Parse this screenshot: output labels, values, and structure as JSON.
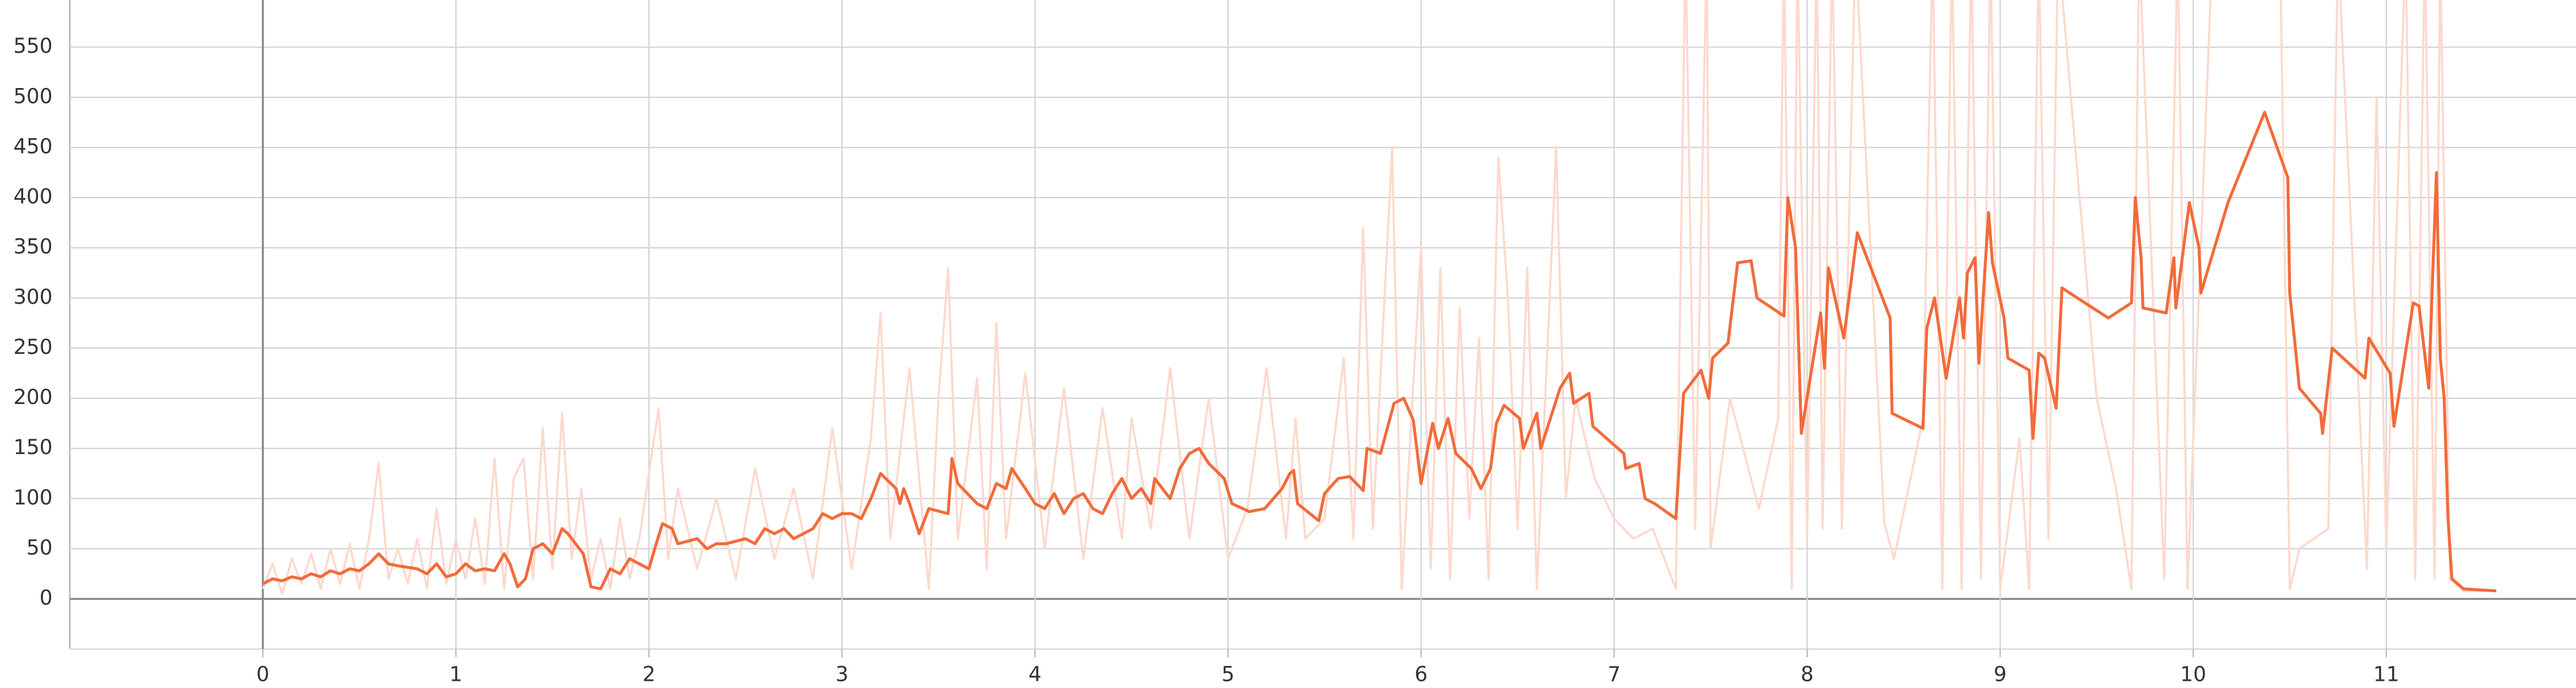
{
  "chart_data": {
    "type": "line",
    "xlim": [
      -1,
      12
    ],
    "ylim": [
      -50,
      597
    ],
    "xticks": [
      0,
      1,
      2,
      3,
      4,
      5,
      6,
      7,
      8,
      9,
      10,
      11
    ],
    "yticks": [
      0,
      50,
      100,
      150,
      200,
      250,
      300,
      350,
      400,
      450,
      500,
      550
    ],
    "grid": true,
    "series": [
      {
        "color": "#fcd9cd",
        "x": [
          0,
          0.05,
          0.1,
          0.15,
          0.2,
          0.25,
          0.3,
          0.35,
          0.4,
          0.45,
          0.5,
          0.55,
          0.6,
          0.65,
          0.7,
          0.75,
          0.8,
          0.85,
          0.9,
          0.95,
          1.0,
          1.05,
          1.1,
          1.15,
          1.2,
          1.25,
          1.3,
          1.35,
          1.4,
          1.45,
          1.5,
          1.55,
          1.6,
          1.65,
          1.7,
          1.75,
          1.8,
          1.85,
          1.9,
          1.95,
          2.05,
          2.1,
          2.15,
          2.25,
          2.35,
          2.45,
          2.55,
          2.65,
          2.75,
          2.85,
          2.95,
          3.05,
          3.15,
          3.2,
          3.25,
          3.35,
          3.45,
          3.5,
          3.55,
          3.6,
          3.7,
          3.75,
          3.8,
          3.85,
          3.95,
          4.05,
          4.15,
          4.25,
          4.35,
          4.45,
          4.5,
          4.6,
          4.7,
          4.8,
          4.9,
          5.0,
          5.1,
          5.2,
          5.3,
          5.35,
          5.4,
          5.5,
          5.6,
          5.65,
          5.7,
          5.75,
          5.85,
          5.9,
          6.0,
          6.05,
          6.1,
          6.15,
          6.2,
          6.25,
          6.3,
          6.35,
          6.4,
          6.45,
          6.5,
          6.55,
          6.6,
          6.7,
          6.75,
          6.8,
          6.9,
          7.0,
          7.1,
          7.2,
          7.32,
          7.37,
          7.42,
          7.48,
          7.5,
          7.6,
          7.75,
          7.85,
          7.88,
          7.92,
          7.95,
          8.0,
          8.05,
          8.08,
          8.13,
          8.18,
          8.25,
          8.4,
          8.45,
          8.6,
          8.65,
          8.7,
          8.75,
          8.8,
          8.85,
          8.9,
          8.95,
          9.0,
          9.1,
          9.15,
          9.2,
          9.25,
          9.3,
          9.5,
          9.6,
          9.68,
          9.72,
          9.85,
          9.92,
          9.97,
          10.1,
          10.45,
          10.5,
          10.55,
          10.7,
          10.75,
          10.9,
          10.95,
          11.0,
          11.1,
          11.15,
          11.2,
          11.25,
          11.28,
          11.33,
          11.4,
          11.57
        ],
        "values": [
          10,
          35,
          5,
          40,
          15,
          45,
          10,
          50,
          15,
          55,
          10,
          60,
          135,
          20,
          50,
          15,
          60,
          10,
          90,
          15,
          60,
          20,
          80,
          15,
          140,
          10,
          120,
          140,
          20,
          170,
          30,
          185,
          40,
          110,
          20,
          60,
          10,
          80,
          20,
          60,
          190,
          40,
          110,
          30,
          100,
          20,
          130,
          40,
          110,
          20,
          170,
          30,
          160,
          285,
          60,
          230,
          10,
          200,
          330,
          60,
          220,
          30,
          275,
          60,
          225,
          50,
          210,
          40,
          190,
          60,
          180,
          70,
          230,
          60,
          200,
          40,
          90,
          230,
          60,
          180,
          60,
          80,
          240,
          60,
          370,
          70,
          450,
          10,
          350,
          30,
          330,
          20,
          290,
          80,
          260,
          20,
          440,
          300,
          70,
          330,
          10,
          450,
          100,
          200,
          120,
          80,
          60,
          70,
          10,
          650,
          70,
          650,
          50,
          200,
          90,
          180,
          650,
          10,
          650,
          60,
          650,
          70,
          650,
          70,
          650,
          75,
          40,
          180,
          650,
          10,
          650,
          10,
          650,
          20,
          650,
          10,
          160,
          10,
          650,
          60,
          650,
          200,
          110,
          10,
          650,
          20,
          650,
          10,
          650,
          650,
          10,
          50,
          70,
          650,
          30,
          500,
          50,
          650,
          20,
          650,
          20,
          650,
          20,
          8,
          8
        ]
      },
      {
        "color": "#f26b3a",
        "x": [
          0,
          0.05,
          0.1,
          0.15,
          0.2,
          0.25,
          0.3,
          0.35,
          0.4,
          0.45,
          0.5,
          0.55,
          0.6,
          0.65,
          0.7,
          0.8,
          0.85,
          0.9,
          0.95,
          1.0,
          1.05,
          1.1,
          1.15,
          1.2,
          1.25,
          1.28,
          1.32,
          1.36,
          1.4,
          1.45,
          1.5,
          1.55,
          1.58,
          1.62,
          1.66,
          1.7,
          1.75,
          1.8,
          1.85,
          1.9,
          1.95,
          2.0,
          2.03,
          2.07,
          2.12,
          2.15,
          2.25,
          2.3,
          2.35,
          2.4,
          2.5,
          2.55,
          2.6,
          2.65,
          2.7,
          2.75,
          2.85,
          2.9,
          2.95,
          3.0,
          3.05,
          3.1,
          3.15,
          3.2,
          3.28,
          3.3,
          3.32,
          3.35,
          3.4,
          3.45,
          3.55,
          3.57,
          3.6,
          3.65,
          3.7,
          3.75,
          3.8,
          3.85,
          3.88,
          3.95,
          4.0,
          4.05,
          4.1,
          4.15,
          4.2,
          4.25,
          4.3,
          4.35,
          4.4,
          4.45,
          4.5,
          4.55,
          4.6,
          4.62,
          4.7,
          4.75,
          4.8,
          4.85,
          4.9,
          4.98,
          5.02,
          5.11,
          5.19,
          5.28,
          5.32,
          5.34,
          5.36,
          5.47,
          5.5,
          5.57,
          5.63,
          5.7,
          5.72,
          5.79,
          5.86,
          5.91,
          5.96,
          6.0,
          6.06,
          6.09,
          6.14,
          6.18,
          6.26,
          6.31,
          6.36,
          6.39,
          6.43,
          6.51,
          6.53,
          6.6,
          6.62,
          6.72,
          6.77,
          6.79,
          6.87,
          6.89,
          7.05,
          7.06,
          7.13,
          7.16,
          7.21,
          7.32,
          7.36,
          7.45,
          7.49,
          7.51,
          7.59,
          7.64,
          7.71,
          7.74,
          7.88,
          7.9,
          7.94,
          7.97,
          8.07,
          8.09,
          8.11,
          8.19,
          8.26,
          8.43,
          8.44,
          8.6,
          8.62,
          8.66,
          8.72,
          8.79,
          8.81,
          8.83,
          8.87,
          8.89,
          8.94,
          8.96,
          9.02,
          9.04,
          9.15,
          9.17,
          9.2,
          9.23,
          9.29,
          9.32,
          9.56,
          9.68,
          9.7,
          9.73,
          9.74,
          9.86,
          9.9,
          9.91,
          9.98,
          10.03,
          10.04,
          10.18,
          10.37,
          10.49,
          10.5,
          10.54,
          10.55,
          10.66,
          10.67,
          10.72,
          10.89,
          10.91,
          11.02,
          11.04,
          11.14,
          11.17,
          11.22,
          11.24,
          11.26,
          11.28,
          11.3,
          11.32,
          11.34,
          11.4,
          11.57
        ],
        "values": [
          15,
          20,
          18,
          22,
          20,
          25,
          22,
          28,
          25,
          30,
          28,
          35,
          45,
          35,
          33,
          30,
          25,
          35,
          22,
          25,
          35,
          28,
          30,
          28,
          45,
          35,
          12,
          20,
          50,
          55,
          45,
          70,
          65,
          55,
          45,
          12,
          10,
          30,
          25,
          40,
          35,
          30,
          50,
          75,
          70,
          55,
          60,
          50,
          55,
          55,
          60,
          55,
          70,
          65,
          70,
          60,
          70,
          85,
          80,
          85,
          85,
          80,
          100,
          125,
          110,
          95,
          110,
          95,
          65,
          90,
          85,
          140,
          115,
          105,
          95,
          90,
          115,
          110,
          130,
          110,
          95,
          90,
          105,
          85,
          100,
          105,
          90,
          85,
          105,
          120,
          100,
          110,
          95,
          120,
          100,
          130,
          145,
          150,
          135,
          120,
          95,
          87,
          90,
          110,
          125,
          128,
          95,
          78,
          105,
          120,
          122,
          108,
          150,
          145,
          195,
          200,
          178,
          115,
          175,
          150,
          180,
          145,
          130,
          110,
          130,
          175,
          193,
          180,
          150,
          185,
          150,
          210,
          225,
          195,
          205,
          172,
          145,
          130,
          135,
          100,
          95,
          80,
          205,
          228,
          200,
          240,
          255,
          335,
          337,
          300,
          282,
          400,
          350,
          165,
          285,
          230,
          330,
          260,
          365,
          280,
          185,
          170,
          270,
          300,
          220,
          300,
          260,
          325,
          340,
          235,
          385,
          335,
          280,
          240,
          228,
          160,
          245,
          240,
          190,
          310,
          280,
          295,
          400,
          340,
          290,
          285,
          340,
          290,
          395,
          350,
          305,
          395,
          485,
          420,
          305,
          230,
          210,
          185,
          165,
          250,
          220,
          260,
          225,
          172,
          295,
          292,
          210,
          320,
          425,
          240,
          200,
          80,
          20,
          10,
          8
        ]
      }
    ]
  }
}
